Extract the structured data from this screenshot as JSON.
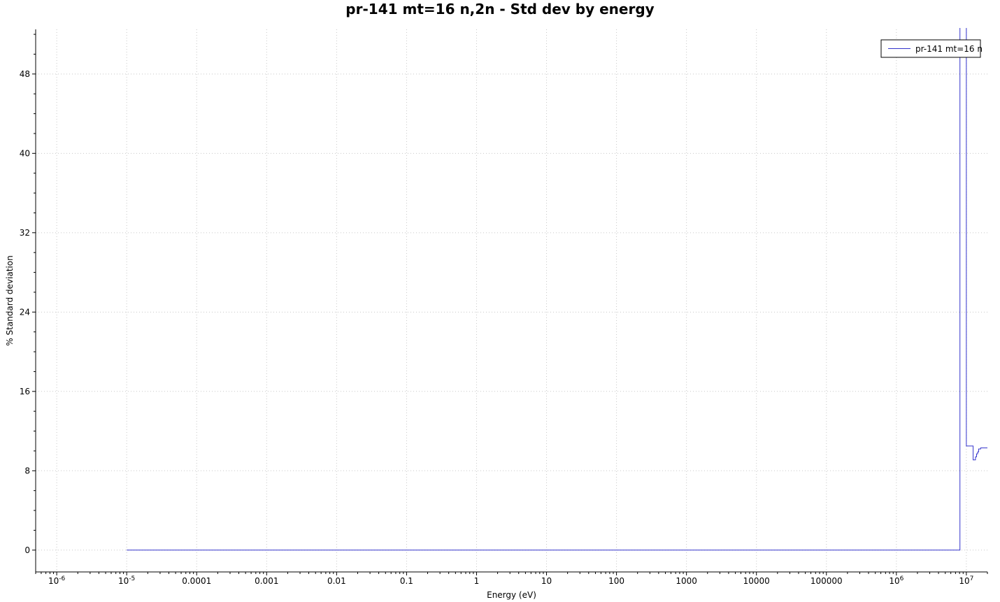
{
  "chart_data": {
    "type": "line",
    "title": "pr-141 mt=16 n,2n - Std dev by energy",
    "xlabel": "Energy (eV)",
    "ylabel": "% Standard deviation",
    "xscale": "log",
    "xlim": [
      5e-07,
      20000000.0
    ],
    "ylim": [
      -2.2,
      52.5
    ],
    "grid": true,
    "legend_position": "top-right",
    "line_color": "#3333cc",
    "x_ticks": [
      {
        "value": 1e-06,
        "base": "10",
        "exp": "-6"
      },
      {
        "value": 1e-05,
        "base": "10",
        "exp": "-5"
      },
      {
        "value": 0.0001,
        "label": "0.0001"
      },
      {
        "value": 0.001,
        "label": "0.001"
      },
      {
        "value": 0.01,
        "label": "0.01"
      },
      {
        "value": 0.1,
        "label": "0.1"
      },
      {
        "value": 1,
        "label": "1"
      },
      {
        "value": 10,
        "label": "10"
      },
      {
        "value": 100,
        "label": "100"
      },
      {
        "value": 1000,
        "label": "1000"
      },
      {
        "value": 10000,
        "label": "10000"
      },
      {
        "value": 100000,
        "label": "100000"
      },
      {
        "value": 1000000.0,
        "base": "10",
        "exp": "6"
      },
      {
        "value": 10000000.0,
        "base": "10",
        "exp": "7"
      }
    ],
    "y_ticks": [
      0,
      8,
      16,
      24,
      32,
      40,
      48
    ],
    "series": [
      {
        "name": "pr-141 mt=16 n",
        "step": true,
        "x": [
          1e-05,
          8100000.0,
          10000000.0,
          12000000.0,
          12500000.0,
          13000000.0,
          13500000.0,
          14000000.0,
          14500000.0,
          15000000.0,
          16000000.0,
          18000000.0,
          20000000.0
        ],
        "y": [
          0,
          55,
          10.5,
          10.5,
          9.1,
          9.1,
          9.4,
          9.7,
          9.9,
          10.2,
          10.3,
          10.3,
          10.3
        ]
      }
    ]
  }
}
